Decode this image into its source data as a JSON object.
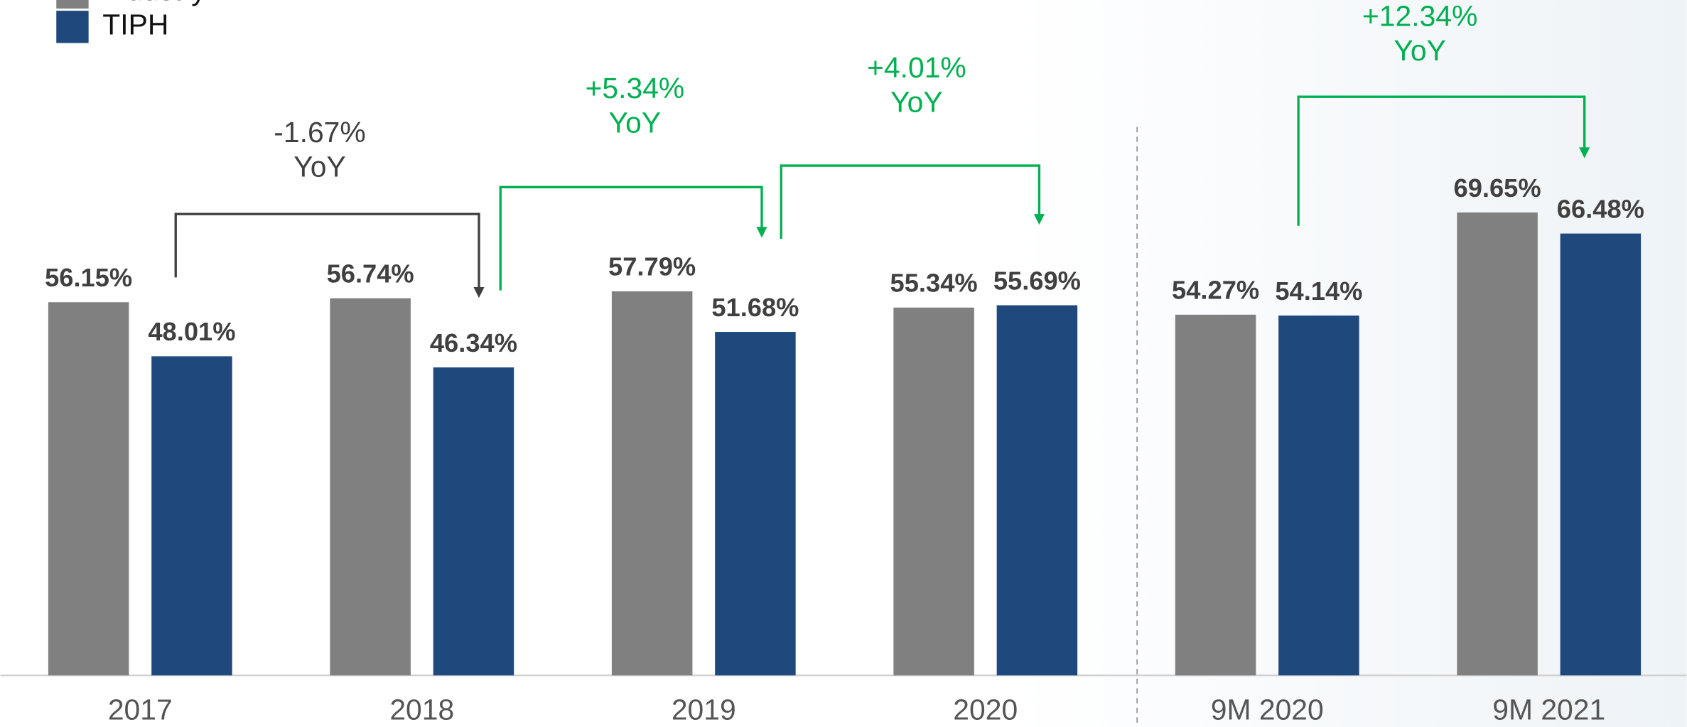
{
  "chart_data": {
    "type": "bar",
    "categories": [
      "2017",
      "2018",
      "2019",
      "2020",
      "9M 2020",
      "9M 2021"
    ],
    "series": [
      {
        "name": "Industry",
        "color": "#808080",
        "values": [
          56.15,
          56.74,
          57.79,
          55.34,
          54.27,
          69.65
        ],
        "value_labels": [
          "56.15%",
          "56.74%",
          "57.79%",
          "55.34%",
          "54.27%",
          "69.65%"
        ]
      },
      {
        "name": "TIPH",
        "color": "#1f497d",
        "values": [
          48.01,
          46.34,
          51.68,
          55.69,
          54.14,
          66.48
        ],
        "value_labels": [
          "48.01%",
          "46.34%",
          "51.68%",
          "55.69%",
          "54.14%",
          "66.48%"
        ]
      }
    ],
    "ylim": [
      0,
      100
    ],
    "legend": "top-left",
    "annotations": [
      {
        "text": [
          "-1.67%",
          "YoY"
        ],
        "color": "#404040"
      },
      {
        "text": [
          "+5.34%",
          "YoY"
        ],
        "color": "#00b050"
      },
      {
        "text": [
          "+4.01%",
          "YoY"
        ],
        "color": "#00b050"
      },
      {
        "text": [
          "+12.34%",
          "YoY"
        ],
        "color": "#00b050"
      }
    ]
  }
}
